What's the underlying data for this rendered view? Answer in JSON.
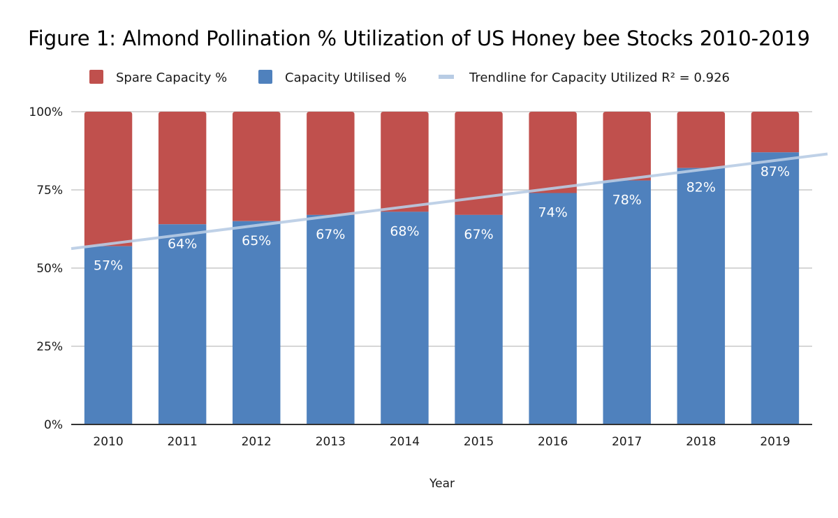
{
  "chart_data": {
    "type": "bar",
    "stacked": true,
    "percent_stacked": true,
    "title": "Figure 1: Almond Pollination % Utilization of US Honey bee Stocks 2010-2019",
    "xlabel": "Year",
    "ylabel": "",
    "ylim": [
      0,
      100
    ],
    "yticks": [
      0,
      25,
      50,
      75,
      100
    ],
    "ytick_labels": [
      "0%",
      "25%",
      "50%",
      "75%",
      "100%"
    ],
    "grid": true,
    "legend_position": "top",
    "categories": [
      "2010",
      "2011",
      "2012",
      "2013",
      "2014",
      "2015",
      "2016",
      "2017",
      "2018",
      "2019"
    ],
    "series": [
      {
        "name": "Capacity Utilised %",
        "color": "#4f81bd",
        "values": [
          57,
          64,
          65,
          67,
          68,
          67,
          74,
          78,
          82,
          87
        ],
        "data_labels": [
          "57%",
          "64%",
          "65%",
          "67%",
          "68%",
          "67%",
          "74%",
          "78%",
          "82%",
          "87%"
        ]
      },
      {
        "name": "Spare Capacity %",
        "color": "#c0504d",
        "values": [
          43,
          36,
          35,
          33,
          32,
          33,
          26,
          22,
          18,
          13
        ]
      }
    ],
    "trendline": {
      "name": "Trendline for Capacity Utilized R² = 0.926",
      "color": "#b8cce4",
      "type": "linear",
      "r_squared": 0.926,
      "start_value": 57.7,
      "end_value": 84.4
    },
    "legend": [
      {
        "label": "Spare Capacity %",
        "color": "#c0504d",
        "kind": "box"
      },
      {
        "label": "Capacity Utilised %",
        "color": "#4f81bd",
        "kind": "box"
      },
      {
        "label": "Trendline for Capacity Utilized R² = 0.926",
        "color": "#b8cce4",
        "kind": "line"
      }
    ]
  }
}
